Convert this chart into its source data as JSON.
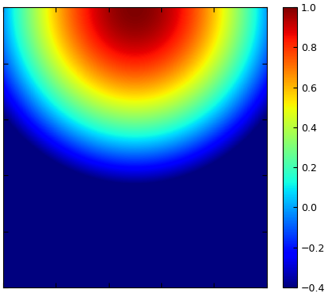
{
  "xmin": 0.0,
  "xmax": 1.0,
  "ymin": 0.0,
  "ymax": 1.0,
  "vmin": -0.4,
  "vmax": 1.0,
  "nx": 400,
  "ny": 400,
  "colorbar_ticks": [
    -0.4,
    -0.2,
    0.0,
    0.2,
    0.4,
    0.6,
    0.8,
    1.0
  ],
  "n_xticks": 5,
  "n_yticks": 5,
  "figwidth": 4.23,
  "figheight": 3.73,
  "dpi": 100
}
